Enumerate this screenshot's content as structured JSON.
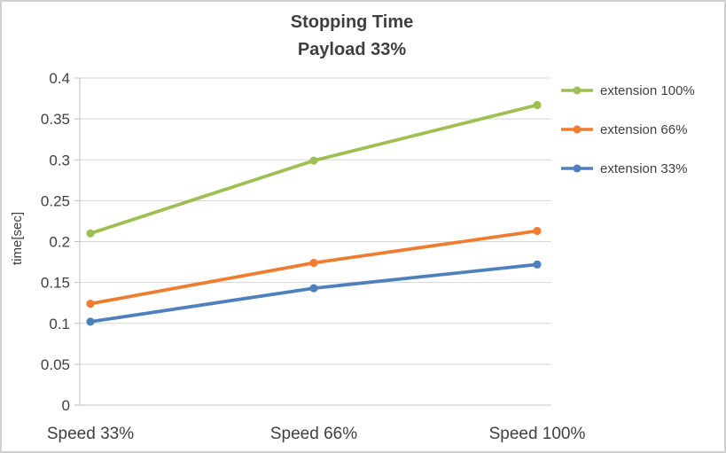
{
  "title": {
    "line1": "Stopping Time",
    "line2": "Payload 33%"
  },
  "axes": {
    "ylabel": "time[sec]"
  },
  "chart_data": {
    "type": "line",
    "title": "Stopping Time",
    "subtitle": "Payload 33%",
    "categories": [
      "Speed 33%",
      "Speed 66%",
      "Speed 100%"
    ],
    "series": [
      {
        "name": "extension 100%",
        "color": "#9FBF54",
        "values": [
          0.21,
          0.299,
          0.367
        ]
      },
      {
        "name": "extension 66%",
        "color": "#ED7D31",
        "values": [
          0.124,
          0.174,
          0.213
        ]
      },
      {
        "name": "extension 33%",
        "color": "#4E80BC",
        "values": [
          0.102,
          0.143,
          0.172
        ]
      }
    ],
    "xlabel": "",
    "ylabel": "time[sec]",
    "ylim": [
      0,
      0.4
    ],
    "ytick_step": 0.05,
    "grid": true,
    "gridline_color": "#d6d6d6",
    "axis_color": "#bfbfbf",
    "tick_label_color": "#404040",
    "legend_position": "right"
  }
}
